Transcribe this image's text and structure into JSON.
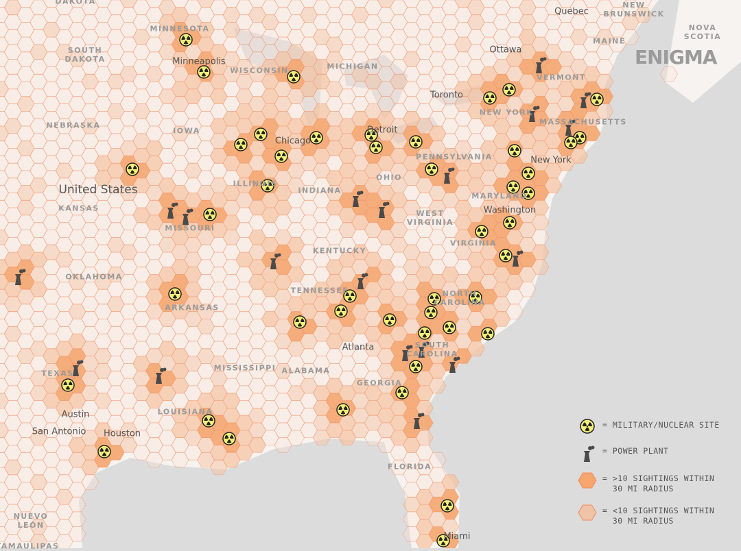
{
  "logo": "ENIGMA",
  "colors": {
    "land": "#f6f3f0",
    "water": "#dcdcdc",
    "hex_light": "#fbe3d6",
    "hex_medium": "#f6c4a4",
    "hex_dark": "#f5a56e",
    "hex_stroke": "#f28a5c",
    "nuclear_fill": "#f2ef7a",
    "plant": "#4a4a4a"
  },
  "icons": {
    "military": "radiation-icon",
    "plant": "power-plant-icon"
  },
  "regions": [
    "DAKOTA",
    "MINNESOTA",
    "SOUTH\nDAKOTA",
    "WISCONSIN",
    "MICHIGAN",
    "NEBRASKA",
    "IOWA",
    "KANSAS",
    "ILLINOIS",
    "INDIANA",
    "OHIO",
    "PENNSYLVANIA",
    "NEW YORK",
    "VERMONT",
    "MAINE",
    "MASSACHUSETTS",
    "NEW\nBRUNSWICK",
    "NOVA\nSCOTIA",
    "MISSOURI",
    "KENTUCKY",
    "WEST\nVIRGINIA",
    "VIRGINIA",
    "MARYLAND",
    "OKLAHOMA",
    "ARKANSAS",
    "TENNESSEE",
    "NORTH\nCAROLINA",
    "SOUTH\nCAROLINA",
    "MISSISSIPPI",
    "ALABAMA",
    "GEORGIA",
    "TEXAS",
    "LOUISIANA",
    "FLORIDA",
    "NUEVO\nLEÓN",
    "TAMAULIPAS"
  ],
  "cities": [
    "Quebec",
    "Ottawa",
    "Toronto",
    "Minneapolis",
    "Chicago",
    "Detroit",
    "New York",
    "Washington",
    "Atlanta",
    "Austin",
    "San Antonio",
    "Houston",
    "Miami"
  ],
  "country": "United States",
  "legend": [
    {
      "label": "= MILITARY/NUCLEAR SITE"
    },
    {
      "label": "= POWER PLANT"
    },
    {
      "label": "= >10 SIGHTINGS WITHIN\n  30 MI RADIUS"
    },
    {
      "label": "= <10 SIGHTINGS WITHIN\n  30 MI RADIUS"
    }
  ]
}
